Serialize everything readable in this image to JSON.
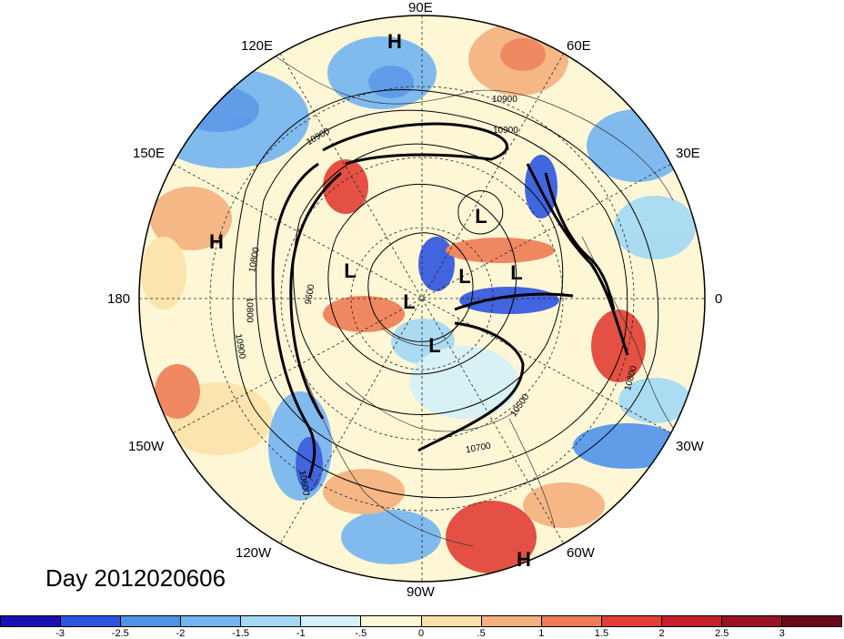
{
  "title": "Day 2012020606",
  "longitude_labels": {
    "lon_90E": "90E",
    "lon_60E": "60E",
    "lon_120E": "120E",
    "lon_30E": "30E",
    "lon_150E": "150E",
    "lon_0": "0",
    "lon_180": "180",
    "lon_150W": "150W",
    "lon_30W": "30W",
    "lon_120W": "120W",
    "lon_60W": "60W",
    "lon_90W": "90W"
  },
  "pressure_centers": [
    {
      "name": "high-top",
      "text": "H"
    },
    {
      "name": "high-left",
      "text": "H"
    },
    {
      "name": "high-bottom",
      "text": "H"
    },
    {
      "name": "low-1",
      "text": "L"
    },
    {
      "name": "low-2",
      "text": "L"
    },
    {
      "name": "low-3",
      "text": "L"
    },
    {
      "name": "low-4",
      "text": "L"
    },
    {
      "name": "low-5",
      "text": "L"
    },
    {
      "name": "low-6",
      "text": "L"
    }
  ],
  "contour_labels": {
    "c1": "10900",
    "c2": "10900",
    "c3": "10900",
    "c4": "10900",
    "c5": "10800",
    "c6": "10800",
    "c7": "10800",
    "c8": "9600",
    "c9": "10500",
    "c10": "10700",
    "c11": "10600"
  },
  "colorbar": {
    "ticks": [
      "-3",
      "-2.5",
      "-2",
      "-1.5",
      "-1",
      "-.5",
      "0",
      ".5",
      "1",
      "1.5",
      "2",
      "2.5",
      "3"
    ],
    "colors": [
      "#1a0fb5",
      "#2e55df",
      "#4f92ea",
      "#74b4f1",
      "#a3d9f5",
      "#d5f1f8",
      "#fdf7d6",
      "#fbe2a9",
      "#f4b07e",
      "#ee7d55",
      "#e23e34",
      "#c5202c",
      "#9a1224",
      "#6b0a1a"
    ]
  }
}
